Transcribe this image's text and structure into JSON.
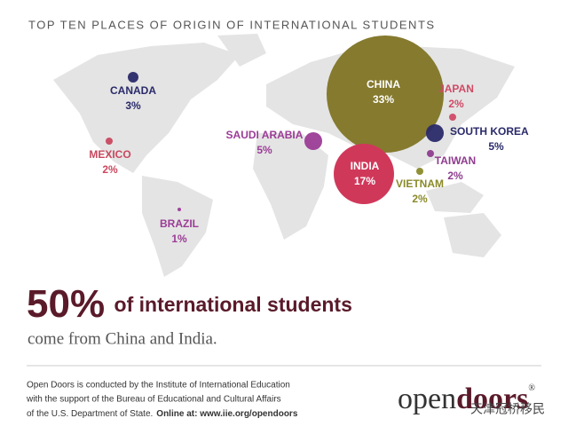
{
  "title": "TOP TEN PLACES OF ORIGIN OF INTERNATIONAL STUDENTS",
  "countries": [
    {
      "name": "CHINA",
      "value": 33,
      "value_label": "33%",
      "color": "#857a2e"
    },
    {
      "name": "INDIA",
      "value": 17,
      "value_label": "17%",
      "color": "#d0385a"
    },
    {
      "name": "SAUDI ARABIA",
      "value": 5,
      "value_label": "5%",
      "color": "#9b3c96"
    },
    {
      "name": "SOUTH KOREA",
      "value": 5,
      "value_label": "5%",
      "color": "#2a2a6a"
    },
    {
      "name": "CANADA",
      "value": 3,
      "value_label": "3%",
      "color": "#2a2a6a"
    },
    {
      "name": "JAPAN",
      "value": 2,
      "value_label": "2%",
      "color": "#d04a66"
    },
    {
      "name": "TAIWAN",
      "value": 2,
      "value_label": "2%",
      "color": "#8e3d8e"
    },
    {
      "name": "VIETNAM",
      "value": 2,
      "value_label": "2%",
      "color": "#8a8a2a"
    },
    {
      "name": "MEXICO",
      "value": 2,
      "value_label": "2%",
      "color": "#c9485f"
    },
    {
      "name": "BRAZIL",
      "value": 1,
      "value_label": "1%",
      "color": "#9b3c96"
    }
  ],
  "headline": {
    "big": "50%",
    "rest": "of international students",
    "line2": "come from China and India."
  },
  "footer": {
    "line1": "Open Doors is conducted by the Institute of International Education",
    "line2": "with the support of the Bureau of Educational and Cultural Affairs",
    "line3": "of the U.S. Department of State.",
    "online": "Online at: www.iie.org/opendoors"
  },
  "logo": {
    "open": "open",
    "doors": "doors",
    "mark": "®"
  },
  "watermark": "天津冠桥移民"
}
